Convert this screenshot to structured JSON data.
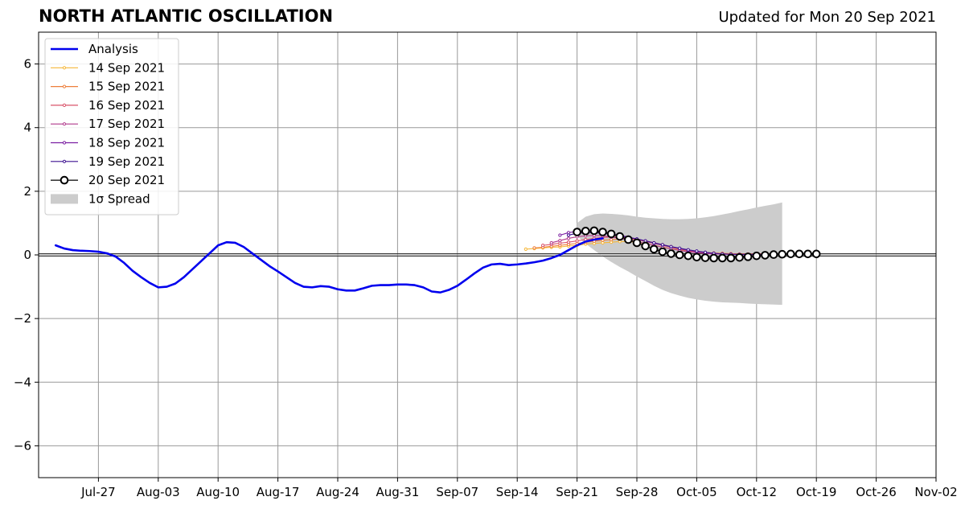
{
  "chart_data": {
    "type": "line",
    "title": "NORTH ATLANTIC OSCILLATION",
    "subtitle": "Updated for Mon 20 Sep 2021",
    "xlabel": "",
    "ylabel": "",
    "xlim": [
      "2021-07-20",
      "2021-11-02"
    ],
    "ylim": [
      -7,
      7
    ],
    "grid": true,
    "legend_position": "top-left",
    "x_ticks": [
      {
        "date": "2021-07-27",
        "label": "Jul-27"
      },
      {
        "date": "2021-08-03",
        "label": "Aug-03"
      },
      {
        "date": "2021-08-10",
        "label": "Aug-10"
      },
      {
        "date": "2021-08-17",
        "label": "Aug-17"
      },
      {
        "date": "2021-08-24",
        "label": "Aug-24"
      },
      {
        "date": "2021-08-31",
        "label": "Aug-31"
      },
      {
        "date": "2021-09-07",
        "label": "Sep-07"
      },
      {
        "date": "2021-09-14",
        "label": "Sep-14"
      },
      {
        "date": "2021-09-21",
        "label": "Sep-21"
      },
      {
        "date": "2021-09-28",
        "label": "Sep-28"
      },
      {
        "date": "2021-10-05",
        "label": "Oct-05"
      },
      {
        "date": "2021-10-12",
        "label": "Oct-12"
      },
      {
        "date": "2021-10-19",
        "label": "Oct-19"
      },
      {
        "date": "2021-10-26",
        "label": "Oct-26"
      },
      {
        "date": "2021-11-02",
        "label": "Nov-02"
      }
    ],
    "y_ticks": [
      {
        "value": 6,
        "label": "6"
      },
      {
        "value": 4,
        "label": "4"
      },
      {
        "value": 2,
        "label": "2"
      },
      {
        "value": 0,
        "label": "0"
      },
      {
        "value": -2,
        "label": "−2"
      },
      {
        "value": -4,
        "label": "−4"
      },
      {
        "value": -6,
        "label": "−6"
      }
    ],
    "analysis": {
      "name": "Analysis",
      "color": "#0000ee",
      "start_date": "2021-07-22",
      "values": [
        0.3,
        0.2,
        0.15,
        0.13,
        0.12,
        0.1,
        0.05,
        -0.05,
        -0.25,
        -0.5,
        -0.7,
        -0.88,
        -1.02,
        -1.0,
        -0.9,
        -0.7,
        -0.45,
        -0.2,
        0.05,
        0.3,
        0.4,
        0.38,
        0.25,
        0.05,
        -0.15,
        -0.35,
        -0.52,
        -0.7,
        -0.88,
        -1.0,
        -1.02,
        -0.98,
        -1.0,
        -1.08,
        -1.12,
        -1.12,
        -1.05,
        -0.97,
        -0.95,
        -0.95,
        -0.93,
        -0.93,
        -0.95,
        -1.02,
        -1.15,
        -1.18,
        -1.1,
        -0.97,
        -0.78,
        -0.58,
        -0.4,
        -0.3,
        -0.28,
        -0.32,
        -0.3,
        -0.27,
        -0.23,
        -0.18,
        -0.1,
        0.0,
        0.15,
        0.3,
        0.42,
        0.48,
        0.52
      ]
    },
    "spread": {
      "name": "1σ Spread",
      "color": "#cccccc",
      "start_date": "2021-09-21",
      "upper": [
        1.0,
        1.2,
        1.28,
        1.3,
        1.29,
        1.27,
        1.24,
        1.2,
        1.17,
        1.15,
        1.13,
        1.12,
        1.12,
        1.13,
        1.15,
        1.18,
        1.22,
        1.27,
        1.32,
        1.38,
        1.43,
        1.49,
        1.54,
        1.59,
        1.65
      ],
      "lower": [
        0.6,
        0.35,
        0.15,
        -0.05,
        -0.22,
        -0.38,
        -0.52,
        -0.68,
        -0.82,
        -0.97,
        -1.1,
        -1.2,
        -1.28,
        -1.35,
        -1.4,
        -1.44,
        -1.47,
        -1.49,
        -1.5,
        -1.51,
        -1.53,
        -1.54,
        -1.55,
        -1.56,
        -1.57
      ]
    },
    "forecasts": [
      {
        "name": "14 Sep 2021",
        "color": "#f6b738",
        "start_date": "2021-09-15",
        "values": [
          0.18,
          0.2,
          0.22,
          0.24,
          0.25,
          0.28,
          0.3,
          0.34,
          0.36,
          0.38,
          0.4,
          0.42,
          0.42,
          0.4,
          0.35,
          0.3,
          0.25,
          0.2,
          0.16,
          0.12,
          0.09,
          0.06,
          0.04,
          0.03,
          0.02,
          0.02,
          0.02,
          0.02,
          0.02
        ]
      },
      {
        "name": "15 Sep 2021",
        "color": "#ee7f3c",
        "start_date": "2021-09-16",
        "values": [
          0.22,
          0.24,
          0.27,
          0.3,
          0.33,
          0.36,
          0.4,
          0.43,
          0.46,
          0.48,
          0.5,
          0.5,
          0.48,
          0.44,
          0.38,
          0.32,
          0.26,
          0.2,
          0.15,
          0.11,
          0.08,
          0.06,
          0.05,
          0.04,
          0.03,
          0.03,
          0.03,
          0.03
        ]
      },
      {
        "name": "16 Sep 2021",
        "color": "#d9536a",
        "start_date": "2021-09-17",
        "values": [
          0.3,
          0.33,
          0.37,
          0.4,
          0.44,
          0.48,
          0.52,
          0.55,
          0.56,
          0.56,
          0.53,
          0.48,
          0.42,
          0.36,
          0.3,
          0.24,
          0.18,
          0.13,
          0.09,
          0.06,
          0.04,
          0.03,
          0.02,
          0.02,
          0.02,
          0.02,
          0.02
        ]
      },
      {
        "name": "17 Sep 2021",
        "color": "#b13a8c",
        "start_date": "2021-09-18",
        "values": [
          0.38,
          0.45,
          0.52,
          0.57,
          0.6,
          0.61,
          0.6,
          0.56,
          0.52,
          0.47,
          0.42,
          0.36,
          0.3,
          0.24,
          0.19,
          0.14,
          0.1,
          0.07,
          0.05,
          0.03,
          0.02,
          0.02,
          0.02,
          0.02,
          0.02,
          0.02
        ]
      },
      {
        "name": "18 Sep 2021",
        "color": "#7b1fa2",
        "start_date": "2021-09-19",
        "values": [
          0.62,
          0.7,
          0.74,
          0.75,
          0.73,
          0.7,
          0.66,
          0.62,
          0.56,
          0.5,
          0.44,
          0.37,
          0.31,
          0.25,
          0.2,
          0.15,
          0.11,
          0.08,
          0.05,
          0.03,
          0.02,
          0.01,
          0.01,
          0.01,
          0.01
        ]
      },
      {
        "name": "19 Sep 2021",
        "color": "#3d1190",
        "start_date": "2021-09-20",
        "values": [
          0.62,
          0.68,
          0.7,
          0.7,
          0.68,
          0.65,
          0.6,
          0.55,
          0.5,
          0.44,
          0.38,
          0.32,
          0.26,
          0.21,
          0.16,
          0.12,
          0.08,
          0.05,
          0.03,
          0.02,
          0.01,
          0.01,
          0.01,
          0.01
        ]
      },
      {
        "name": "20 Sep 2021",
        "color": "#000000",
        "start_date": "2021-09-21",
        "values": [
          0.72,
          0.75,
          0.76,
          0.72,
          0.66,
          0.58,
          0.48,
          0.38,
          0.28,
          0.18,
          0.1,
          0.04,
          0.0,
          -0.03,
          -0.07,
          -0.09,
          -0.1,
          -0.1,
          -0.1,
          -0.08,
          -0.06,
          -0.03,
          -0.01,
          0.01,
          0.02,
          0.03,
          0.03,
          0.03,
          0.03
        ]
      }
    ]
  }
}
